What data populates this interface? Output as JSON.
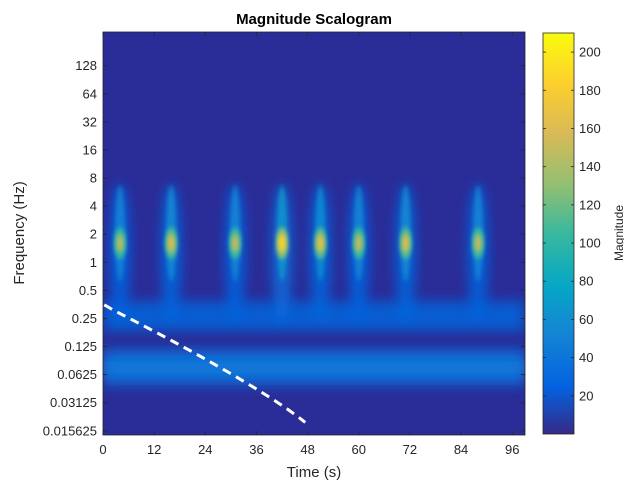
{
  "chart_data": {
    "type": "heatmap",
    "title": "Magnitude Scalogram",
    "xlabel": "Time (s)",
    "ylabel": "Frequency (Hz)",
    "xlim": [
      0,
      99
    ],
    "ylim_log2": [
      -6.15,
      8.2
    ],
    "x_ticks": [
      0,
      12,
      24,
      36,
      48,
      60,
      72,
      84,
      96
    ],
    "y_ticks": [
      {
        "value": 128,
        "label": "128"
      },
      {
        "value": 64,
        "label": "64"
      },
      {
        "value": 32,
        "label": "32"
      },
      {
        "value": 16,
        "label": "16"
      },
      {
        "value": 8,
        "label": "8"
      },
      {
        "value": 4,
        "label": "4"
      },
      {
        "value": 2,
        "label": "2"
      },
      {
        "value": 1,
        "label": "1"
      },
      {
        "value": 0.5,
        "label": "0.5"
      },
      {
        "value": 0.25,
        "label": "0.25"
      },
      {
        "value": 0.125,
        "label": "0.125"
      },
      {
        "value": 0.0625,
        "label": "0.0625"
      },
      {
        "value": 0.03125,
        "label": "0.03125"
      },
      {
        "value": 0.015625,
        "label": "0.015625"
      }
    ],
    "colorbar": {
      "label": "Magnitude",
      "range": [
        0,
        210
      ],
      "ticks": [
        20,
        40,
        60,
        80,
        100,
        120,
        140,
        160,
        180,
        200
      ],
      "colormap": "parula"
    },
    "peaks": [
      {
        "time": 4,
        "freq_hz": 1.6,
        "magnitude": 145
      },
      {
        "time": 16,
        "freq_hz": 1.6,
        "magnitude": 160
      },
      {
        "time": 31,
        "freq_hz": 1.6,
        "magnitude": 150
      },
      {
        "time": 42,
        "freq_hz": 1.6,
        "magnitude": 185
      },
      {
        "time": 51,
        "freq_hz": 1.6,
        "magnitude": 165
      },
      {
        "time": 60,
        "freq_hz": 1.6,
        "magnitude": 150
      },
      {
        "time": 71,
        "freq_hz": 1.6,
        "magnitude": 160
      },
      {
        "time": 88,
        "freq_hz": 1.6,
        "magnitude": 150
      }
    ],
    "low_freq_band": {
      "freq_hz": 0.075,
      "magnitude": 45
    },
    "cone_of_influence": {
      "style": "white dashed",
      "vertex_time": 49.5,
      "vertex_freq_hz": 0.015625
    }
  }
}
